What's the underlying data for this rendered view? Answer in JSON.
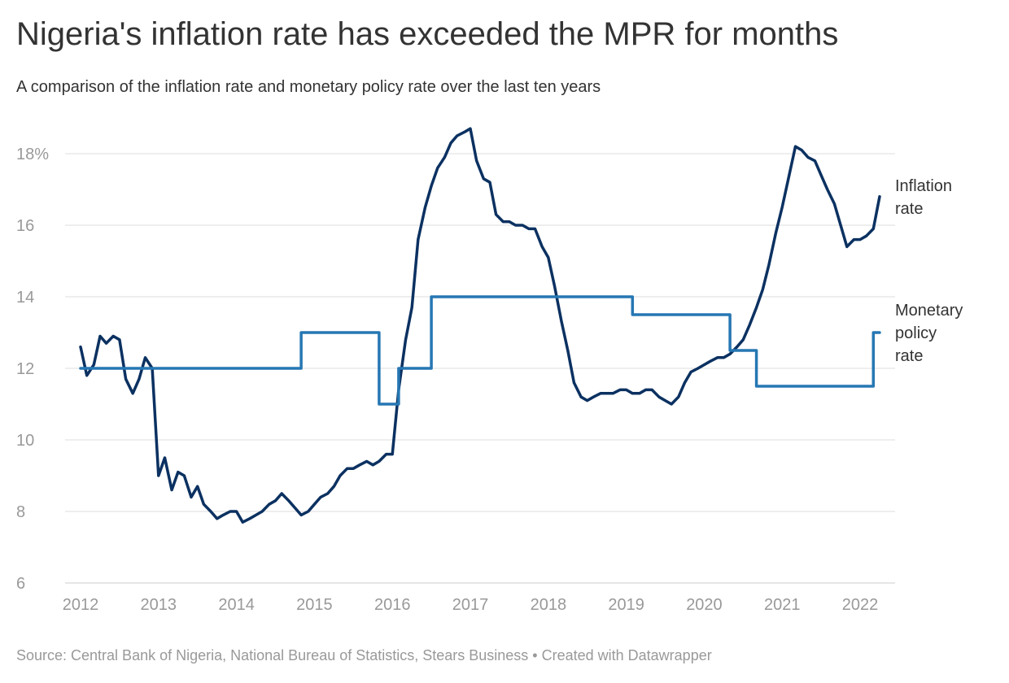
{
  "title": "Nigeria's inflation rate has exceeded the MPR for months",
  "subtitle": "A comparison of the inflation rate and monetary policy rate over the last ten years",
  "source": "Source: Central Bank of Nigeria, National Bureau of Statistics, Stears Business • Created with Datawrapper",
  "colors": {
    "inflation": "#0b3161",
    "mpr": "#2677b3",
    "grid": "#dddddd",
    "tick": "#999999"
  },
  "chart_data": {
    "type": "line",
    "ylim": [
      6,
      19
    ],
    "xlim": [
      2012,
      2022.33
    ],
    "y_ticks": [
      {
        "value": 18,
        "label": "18%"
      },
      {
        "value": 16,
        "label": "16"
      },
      {
        "value": 14,
        "label": "14"
      },
      {
        "value": 12,
        "label": "12"
      },
      {
        "value": 10,
        "label": "10"
      },
      {
        "value": 8,
        "label": "8"
      },
      {
        "value": 6,
        "label": "6"
      }
    ],
    "x_ticks": [
      "2012",
      "2013",
      "2014",
      "2015",
      "2016",
      "2017",
      "2018",
      "2019",
      "2020",
      "2021",
      "2022"
    ],
    "grid": true,
    "series": [
      {
        "name": "Inflation rate",
        "color_key": "inflation",
        "label_lines": [
          "Inflation",
          "rate"
        ],
        "step": false,
        "points": [
          [
            2012.0,
            12.6
          ],
          [
            2012.08,
            11.8
          ],
          [
            2012.17,
            12.1
          ],
          [
            2012.25,
            12.9
          ],
          [
            2012.33,
            12.7
          ],
          [
            2012.42,
            12.9
          ],
          [
            2012.5,
            12.8
          ],
          [
            2012.58,
            11.7
          ],
          [
            2012.67,
            11.3
          ],
          [
            2012.75,
            11.7
          ],
          [
            2012.83,
            12.3
          ],
          [
            2012.92,
            12.0
          ],
          [
            2013.0,
            9.0
          ],
          [
            2013.08,
            9.5
          ],
          [
            2013.17,
            8.6
          ],
          [
            2013.25,
            9.1
          ],
          [
            2013.33,
            9.0
          ],
          [
            2013.42,
            8.4
          ],
          [
            2013.5,
            8.7
          ],
          [
            2013.58,
            8.2
          ],
          [
            2013.67,
            8.0
          ],
          [
            2013.75,
            7.8
          ],
          [
            2013.83,
            7.9
          ],
          [
            2013.92,
            8.0
          ],
          [
            2014.0,
            8.0
          ],
          [
            2014.08,
            7.7
          ],
          [
            2014.17,
            7.8
          ],
          [
            2014.25,
            7.9
          ],
          [
            2014.33,
            8.0
          ],
          [
            2014.42,
            8.2
          ],
          [
            2014.5,
            8.3
          ],
          [
            2014.58,
            8.5
          ],
          [
            2014.67,
            8.3
          ],
          [
            2014.75,
            8.1
          ],
          [
            2014.83,
            7.9
          ],
          [
            2014.92,
            8.0
          ],
          [
            2015.0,
            8.2
          ],
          [
            2015.08,
            8.4
          ],
          [
            2015.17,
            8.5
          ],
          [
            2015.25,
            8.7
          ],
          [
            2015.33,
            9.0
          ],
          [
            2015.42,
            9.2
          ],
          [
            2015.5,
            9.2
          ],
          [
            2015.58,
            9.3
          ],
          [
            2015.67,
            9.4
          ],
          [
            2015.75,
            9.3
          ],
          [
            2015.83,
            9.4
          ],
          [
            2015.92,
            9.6
          ],
          [
            2016.0,
            9.6
          ],
          [
            2016.08,
            11.4
          ],
          [
            2016.17,
            12.8
          ],
          [
            2016.25,
            13.7
          ],
          [
            2016.33,
            15.6
          ],
          [
            2016.42,
            16.5
          ],
          [
            2016.5,
            17.1
          ],
          [
            2016.58,
            17.6
          ],
          [
            2016.67,
            17.9
          ],
          [
            2016.75,
            18.3
          ],
          [
            2016.83,
            18.5
          ],
          [
            2016.92,
            18.6
          ],
          [
            2017.0,
            18.7
          ],
          [
            2017.08,
            17.8
          ],
          [
            2017.17,
            17.3
          ],
          [
            2017.25,
            17.2
          ],
          [
            2017.33,
            16.3
          ],
          [
            2017.42,
            16.1
          ],
          [
            2017.5,
            16.1
          ],
          [
            2017.58,
            16.0
          ],
          [
            2017.67,
            16.0
          ],
          [
            2017.75,
            15.9
          ],
          [
            2017.83,
            15.9
          ],
          [
            2017.92,
            15.4
          ],
          [
            2018.0,
            15.1
          ],
          [
            2018.08,
            14.3
          ],
          [
            2018.17,
            13.3
          ],
          [
            2018.25,
            12.5
          ],
          [
            2018.33,
            11.6
          ],
          [
            2018.42,
            11.2
          ],
          [
            2018.5,
            11.1
          ],
          [
            2018.58,
            11.2
          ],
          [
            2018.67,
            11.3
          ],
          [
            2018.75,
            11.3
          ],
          [
            2018.83,
            11.3
          ],
          [
            2018.92,
            11.4
          ],
          [
            2019.0,
            11.4
          ],
          [
            2019.08,
            11.3
          ],
          [
            2019.17,
            11.3
          ],
          [
            2019.25,
            11.4
          ],
          [
            2019.33,
            11.4
          ],
          [
            2019.42,
            11.2
          ],
          [
            2019.5,
            11.1
          ],
          [
            2019.58,
            11.0
          ],
          [
            2019.67,
            11.2
          ],
          [
            2019.75,
            11.6
          ],
          [
            2019.83,
            11.9
          ],
          [
            2019.92,
            12.0
          ],
          [
            2020.0,
            12.1
          ],
          [
            2020.08,
            12.2
          ],
          [
            2020.17,
            12.3
          ],
          [
            2020.25,
            12.3
          ],
          [
            2020.33,
            12.4
          ],
          [
            2020.42,
            12.6
          ],
          [
            2020.5,
            12.8
          ],
          [
            2020.58,
            13.2
          ],
          [
            2020.67,
            13.7
          ],
          [
            2020.75,
            14.2
          ],
          [
            2020.83,
            14.9
          ],
          [
            2020.92,
            15.8
          ],
          [
            2021.0,
            16.5
          ],
          [
            2021.08,
            17.3
          ],
          [
            2021.17,
            18.2
          ],
          [
            2021.25,
            18.1
          ],
          [
            2021.33,
            17.9
          ],
          [
            2021.42,
            17.8
          ],
          [
            2021.5,
            17.4
          ],
          [
            2021.58,
            17.0
          ],
          [
            2021.67,
            16.6
          ],
          [
            2021.75,
            16.0
          ],
          [
            2021.83,
            15.4
          ],
          [
            2021.92,
            15.6
          ],
          [
            2022.0,
            15.6
          ],
          [
            2022.08,
            15.7
          ],
          [
            2022.17,
            15.9
          ],
          [
            2022.25,
            16.8
          ]
        ]
      },
      {
        "name": "Monetary policy rate",
        "color_key": "mpr",
        "label_lines": [
          "Monetary",
          "policy",
          "rate"
        ],
        "step": true,
        "points": [
          [
            2012.0,
            12.0
          ],
          [
            2014.83,
            13.0
          ],
          [
            2015.83,
            11.0
          ],
          [
            2016.08,
            12.0
          ],
          [
            2016.5,
            14.0
          ],
          [
            2019.08,
            13.5
          ],
          [
            2020.33,
            12.5
          ],
          [
            2020.67,
            11.5
          ],
          [
            2022.17,
            13.0
          ],
          [
            2022.25,
            13.0
          ]
        ]
      }
    ]
  }
}
